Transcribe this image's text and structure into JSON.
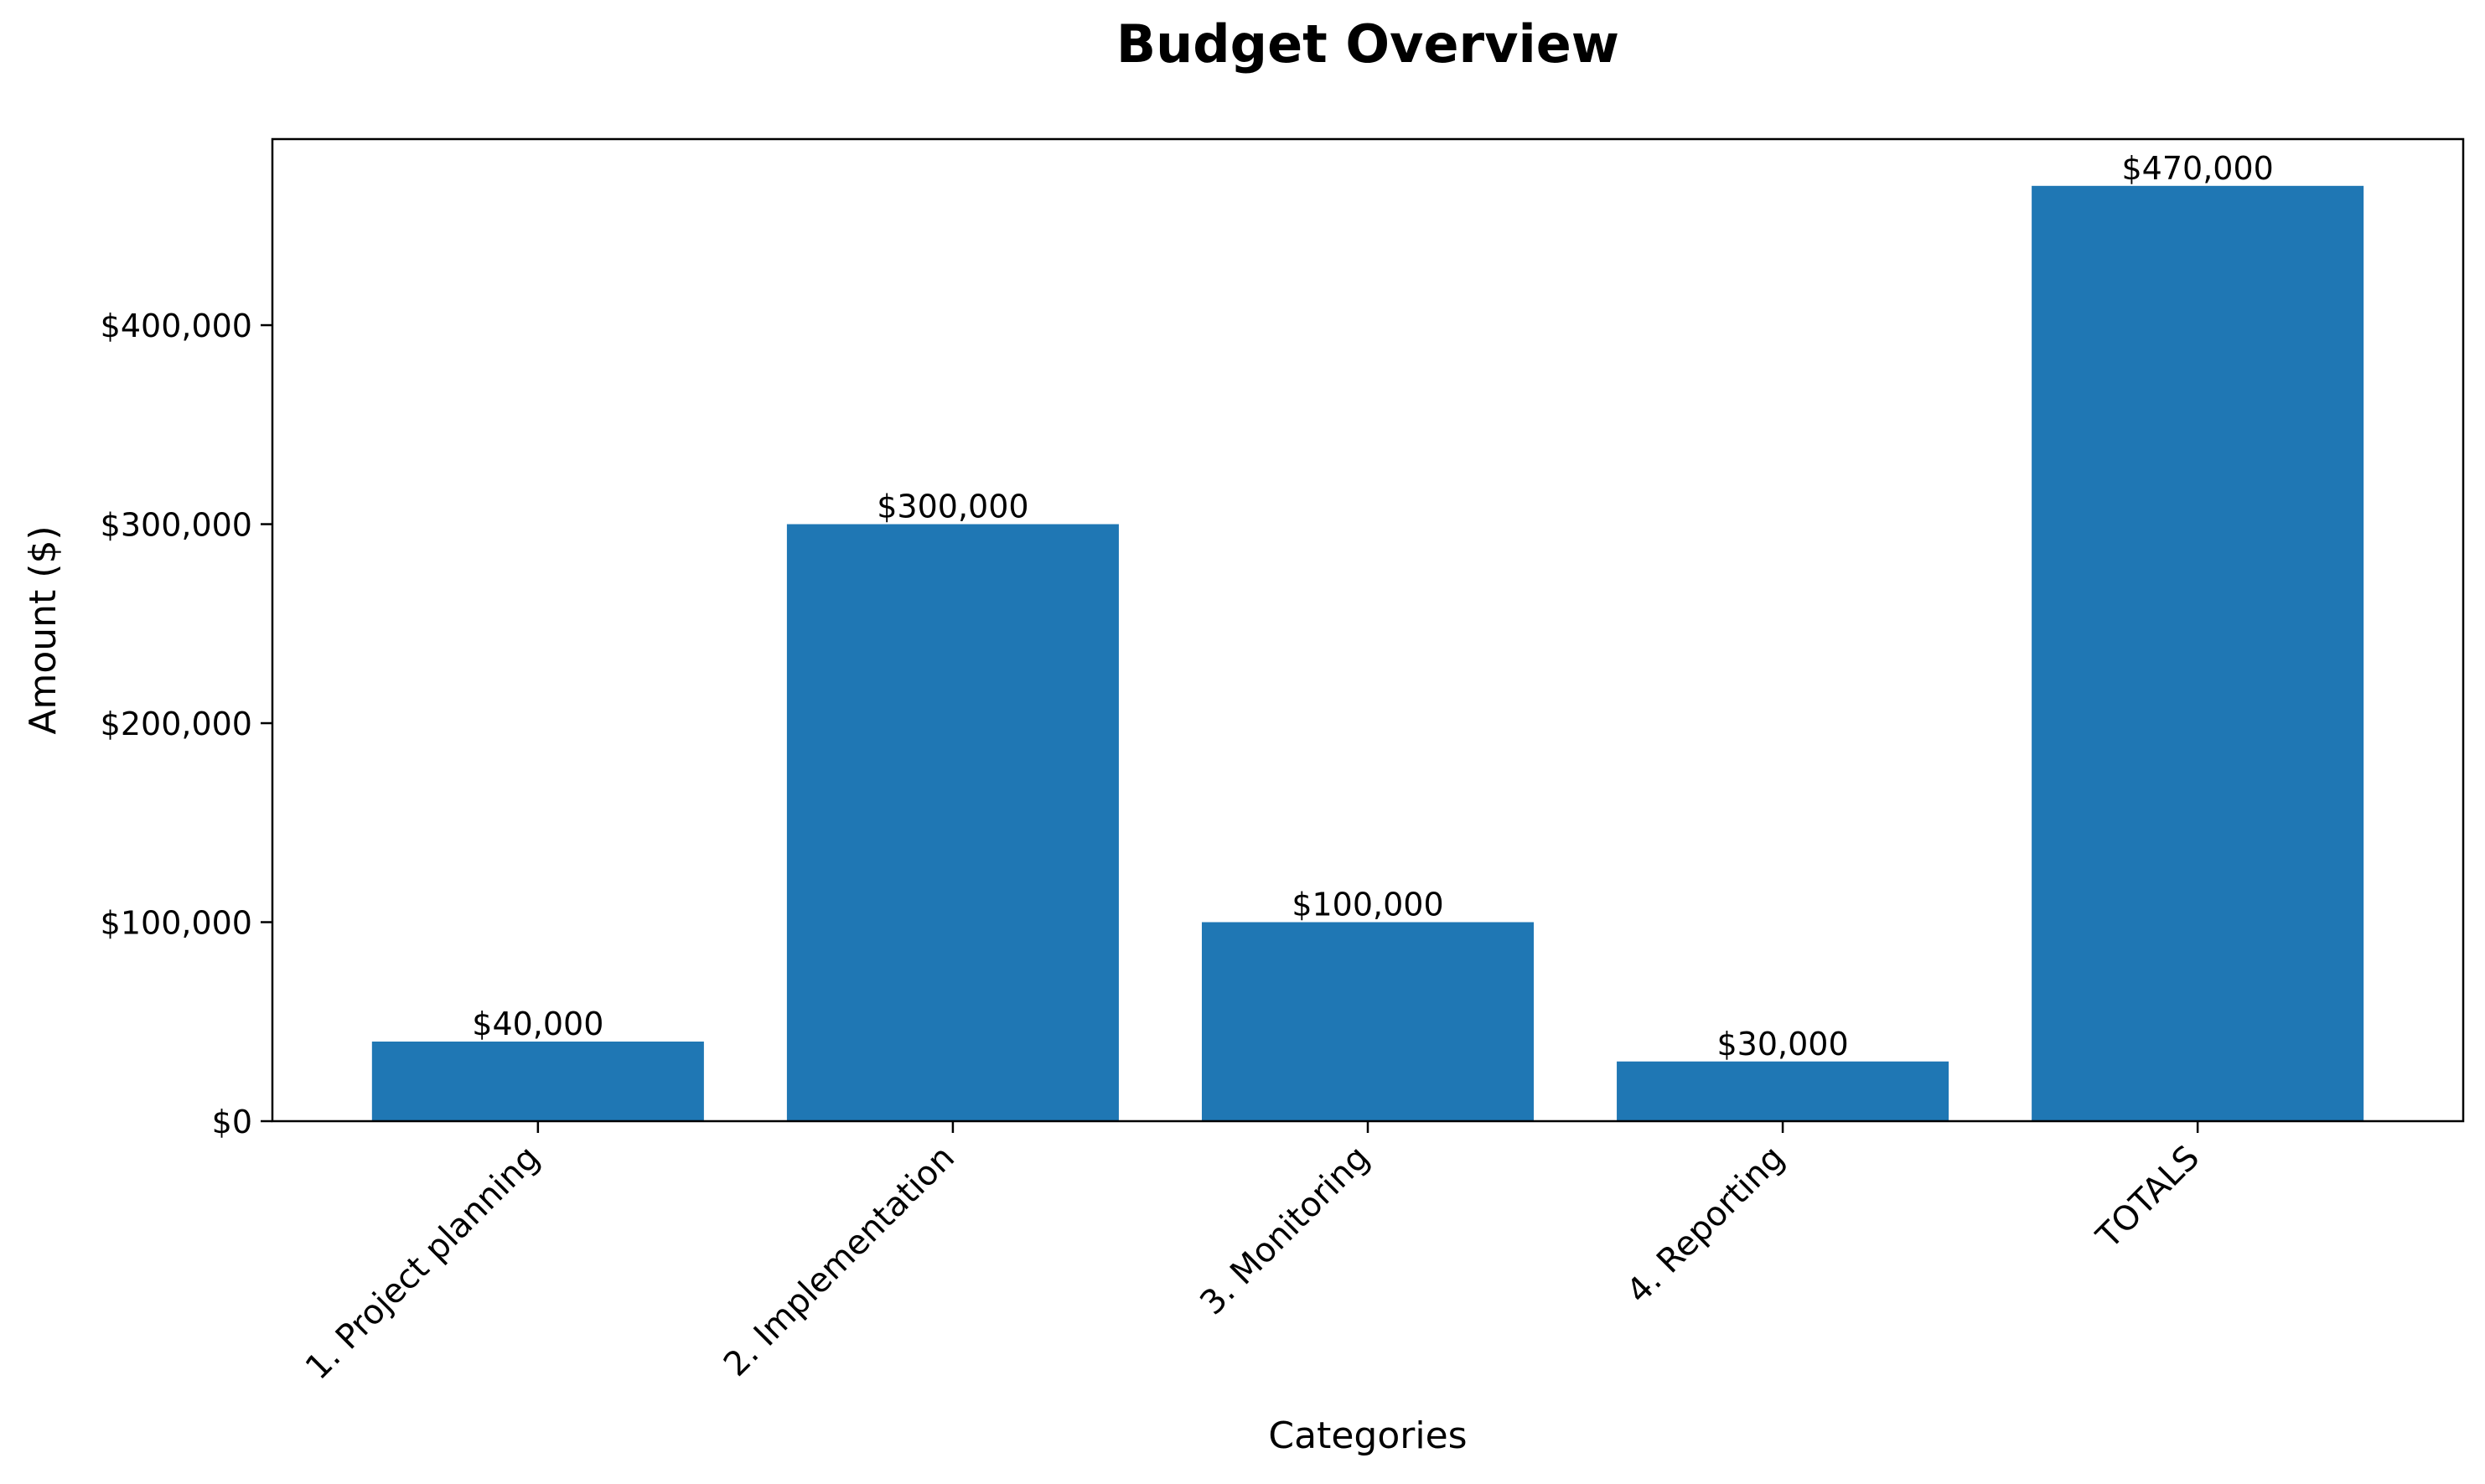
{
  "chart_data": {
    "type": "bar",
    "title": "Budget Overview",
    "xlabel": "Categories",
    "ylabel": "Amount ($)",
    "categories": [
      "1. Project planning",
      "2. Implementation",
      "3. Monitoring",
      "4. Reporting",
      "TOTALS"
    ],
    "values": [
      40000,
      300000,
      100000,
      30000,
      470000
    ],
    "value_labels": [
      "$40,000",
      "$300,000",
      "$100,000",
      "$30,000",
      "$470,000"
    ],
    "ylim": [
      0,
      493500
    ],
    "yticks": [
      0,
      100000,
      200000,
      300000,
      400000
    ],
    "ytick_labels": [
      "$0",
      "$100,000",
      "$200,000",
      "$300,000",
      "$400,000"
    ],
    "grid": false,
    "legend": false,
    "colors": {
      "bar": "#1f77b4",
      "axis": "#000000",
      "background": "#ffffff"
    }
  }
}
